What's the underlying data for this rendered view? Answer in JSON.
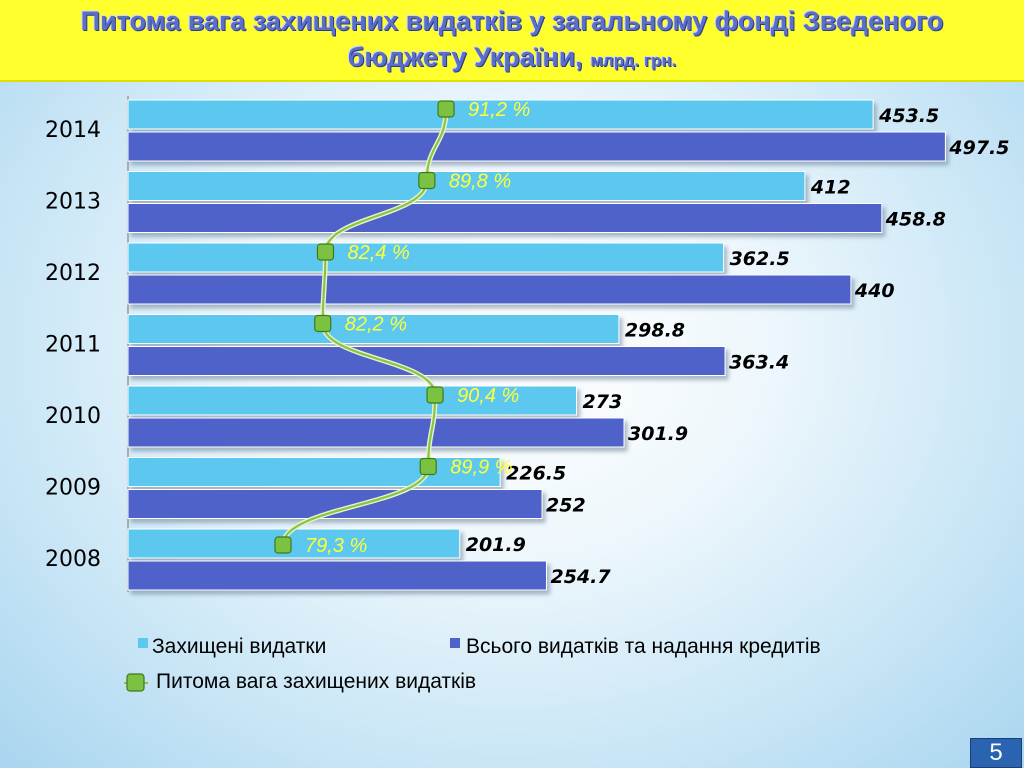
{
  "title": {
    "line1": "Питома вага захищених видатків у загальному фонді Зведеного",
    "line2": "бюджету України,",
    "unit": "млрд. грн."
  },
  "page_number": "5",
  "colors": {
    "protected": "#5bc8ef",
    "total": "#4f62c9",
    "share_line": "#8bc34a",
    "share_text": "#ffff3a",
    "title_band": "#ffff2e"
  },
  "chart_data": {
    "type": "bar",
    "orientation": "horizontal",
    "categories": [
      "2014",
      "2013",
      "2012",
      "2011",
      "2010",
      "2009",
      "2008"
    ],
    "series": [
      {
        "name": "Захищені видатки",
        "values": [
          453.5,
          412,
          362.5,
          298.8,
          273,
          226.5,
          201.9
        ],
        "labels": [
          "453.5",
          "412",
          "362.5",
          "298.8",
          "273",
          "226.5",
          "201.9"
        ]
      },
      {
        "name": "Всього видатків та надання кредитів",
        "values": [
          497.5,
          458.8,
          440,
          363.4,
          301.9,
          252,
          254.7
        ],
        "labels": [
          "497.5",
          "458.8",
          "440",
          "363.4",
          "301.9",
          "252",
          "254.7"
        ]
      }
    ],
    "line_series": {
      "name": "Питома вага захищених видатків",
      "values": [
        91.2,
        89.8,
        82.4,
        82.2,
        90.4,
        89.9,
        79.3
      ],
      "labels": [
        "91,2 %",
        "89,8 %",
        "82,4 %",
        "82,2 %",
        "90,4 %",
        "89,9 %",
        "79,3 %"
      ]
    },
    "xlim": [
      0,
      520
    ],
    "legend": "bottom",
    "grid": false
  }
}
